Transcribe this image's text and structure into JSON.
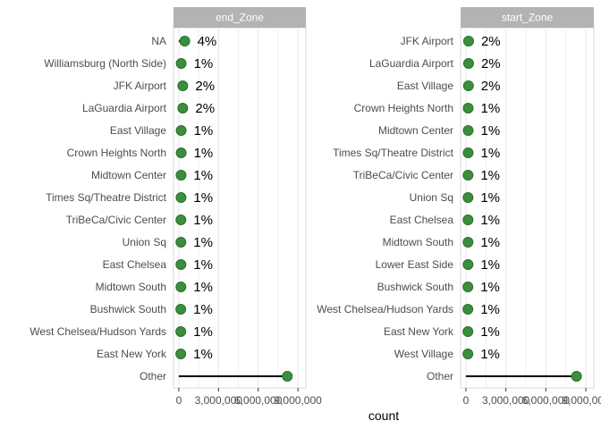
{
  "chart_data": {
    "type": "scatter",
    "style": "lollipop",
    "xlabel": "count",
    "x_ticks": [
      0,
      3000000,
      6000000,
      9000000
    ],
    "x_tick_labels": [
      "0",
      "3,000,000",
      "6,000,000",
      "9,000,000"
    ],
    "xlim": [
      -400000,
      9600000
    ],
    "grid": true,
    "colors": {
      "point": "#3a8f3a",
      "point_stroke": "#2e6e2e",
      "segment": "#000000",
      "strip": "#b3b3b3",
      "gridline": "#e6e6e6",
      "panel_border": "#d9d9d9"
    },
    "panels": [
      {
        "facet": "end_Zone",
        "categories": [
          "NA",
          "Williamsburg (North Side)",
          "JFK Airport",
          "LaGuardia Airport",
          "East Village",
          "Crown Heights North",
          "Midtown Center",
          "Times Sq/Theatre District",
          "TriBeCa/Civic Center",
          "Union Sq",
          "East Chelsea",
          "Midtown South",
          "Bushwick South",
          "West Chelsea/Hudson Yards",
          "East New York",
          "Other"
        ],
        "values": [
          450000,
          180000,
          300000,
          300000,
          180000,
          180000,
          170000,
          170000,
          160000,
          160000,
          160000,
          160000,
          150000,
          150000,
          150000,
          8200000
        ],
        "labels": [
          "4%",
          "1%",
          "2%",
          "2%",
          "1%",
          "1%",
          "1%",
          "1%",
          "1%",
          "1%",
          "1%",
          "1%",
          "1%",
          "1%",
          "1%",
          ""
        ]
      },
      {
        "facet": "start_Zone",
        "categories": [
          "JFK Airport",
          "LaGuardia Airport",
          "East Village",
          "Crown Heights North",
          "Midtown Center",
          "Times Sq/Theatre District",
          "TriBeCa/Civic Center",
          "Union Sq",
          "East Chelsea",
          "Midtown South",
          "Lower East Side",
          "Bushwick South",
          "West Chelsea/Hudson Yards",
          "East New York",
          "West Village",
          "Other"
        ],
        "values": [
          200000,
          200000,
          190000,
          170000,
          170000,
          170000,
          160000,
          160000,
          160000,
          160000,
          160000,
          150000,
          150000,
          150000,
          150000,
          8300000
        ],
        "labels": [
          "2%",
          "2%",
          "2%",
          "1%",
          "1%",
          "1%",
          "1%",
          "1%",
          "1%",
          "1%",
          "1%",
          "1%",
          "1%",
          "1%",
          "1%",
          ""
        ]
      }
    ]
  }
}
